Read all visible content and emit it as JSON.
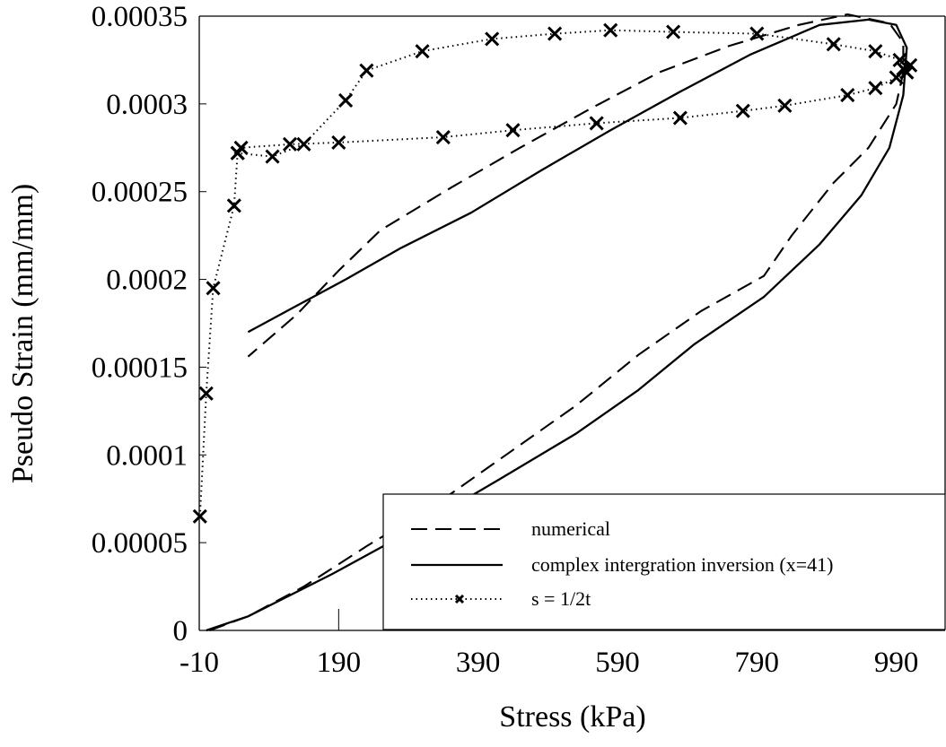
{
  "chart_data": {
    "type": "line",
    "title": "",
    "xlabel": "Stress (kPa)",
    "ylabel": "Pseudo Strain (mm/mm)",
    "xlim": [
      -10,
      1060
    ],
    "ylim": [
      0,
      0.00035
    ],
    "x_ticks": [
      "-10",
      "190",
      "390",
      "590",
      "790",
      "990"
    ],
    "x_tick_values": [
      -10,
      190,
      390,
      590,
      790,
      990
    ],
    "y_ticks": [
      "0",
      "0.00005",
      "0.0001",
      "0.00015",
      "0.0002",
      "0.00025",
      "0.0003",
      "0.00035"
    ],
    "y_tick_values": [
      0,
      5e-05,
      0.0001,
      0.00015,
      0.0002,
      0.00025,
      0.0003,
      0.00035
    ],
    "grid": false,
    "legend_position": "bottom-right",
    "series": [
      {
        "name": "numerical",
        "style": "dashed",
        "color": "#000000",
        "x": [
          5,
          60,
          140,
          230,
          330,
          430,
          530,
          620,
          710,
          800,
          840,
          900,
          950,
          990,
          1000,
          1000,
          980,
          920,
          850,
          750,
          650,
          550,
          450,
          350,
          250,
          190,
          130,
          60
        ],
        "y": [
          0,
          8e-06,
          2.5e-05,
          4.8e-05,
          7.2e-05,
          0.0001,
          0.000128,
          0.000157,
          0.000182,
          0.000202,
          0.000225,
          0.000255,
          0.000275,
          0.0003,
          0.000318,
          0.000335,
          0.000346,
          0.000351,
          0.000345,
          0.000333,
          0.000318,
          0.000297,
          0.000275,
          0.000252,
          0.000228,
          0.000205,
          0.00018,
          0.000156
        ]
      },
      {
        "name": "complex intergration inversion (x=41)",
        "style": "solid",
        "color": "#000000",
        "x": [
          0,
          60,
          180,
          300,
          420,
          530,
          620,
          700,
          800,
          880,
          940,
          980,
          1000,
          1005,
          990,
          950,
          880,
          780,
          680,
          580,
          480,
          380,
          280,
          200,
          130,
          60
        ],
        "y": [
          0,
          8e-06,
          3.2e-05,
          5.8e-05,
          8.6e-05,
          0.000112,
          0.000137,
          0.000163,
          0.00019,
          0.00022,
          0.000248,
          0.000275,
          0.000305,
          0.000332,
          0.000345,
          0.000348,
          0.000345,
          0.000328,
          0.000307,
          0.000285,
          0.000262,
          0.000238,
          0.000218,
          0.0002,
          0.000185,
          0.00017
        ]
      },
      {
        "name": "s = 1/2t",
        "style": "dotted-x",
        "color": "#000000",
        "x": [
          -9,
          0,
          10,
          40,
          45,
          95,
          140,
          200,
          230,
          310,
          410,
          500,
          580,
          670,
          790,
          900,
          960,
          995,
          1000,
          1005,
          1010,
          1005,
          990,
          960,
          920,
          830,
          770,
          680,
          560,
          440,
          340,
          190,
          120,
          50,
          45
        ],
        "y": [
          6.5e-05,
          0.000135,
          0.000195,
          0.000242,
          0.000272,
          0.00027,
          0.000277,
          0.000302,
          0.000319,
          0.00033,
          0.000337,
          0.00034,
          0.000342,
          0.000341,
          0.00034,
          0.000334,
          0.00033,
          0.000325,
          0.00032,
          0.000318,
          0.000322,
          0.000318,
          0.000315,
          0.000309,
          0.000305,
          0.000299,
          0.000296,
          0.000292,
          0.000289,
          0.000285,
          0.000281,
          0.000278,
          0.000277,
          0.000275,
          0.000272
        ]
      }
    ]
  }
}
